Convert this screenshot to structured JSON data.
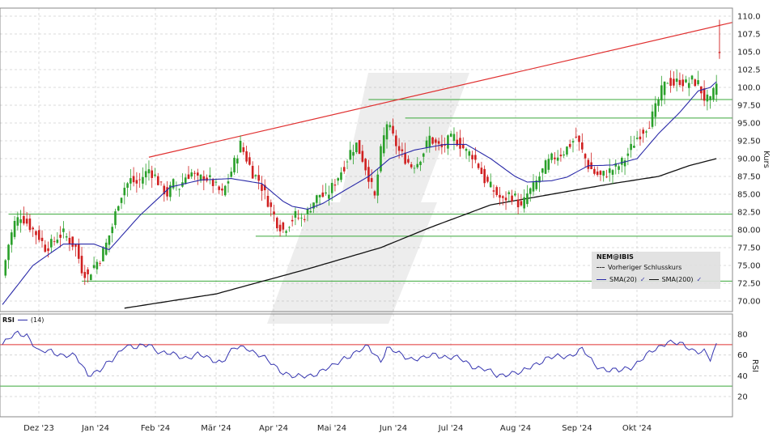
{
  "chart_data": [
    {
      "type": "candlestick",
      "title": "",
      "symbol": "NEM@IBIS",
      "ylabel": "Kurs",
      "ylim": [
        68.5,
        111
      ],
      "yticks": [
        "110.0",
        "107.5",
        "105.0",
        "102.5",
        "100.0",
        "97.50",
        "95.00",
        "92.50",
        "90.00",
        "87.50",
        "85.00",
        "82.50",
        "80.00",
        "77.50",
        "75.00",
        "72.50",
        "70.00"
      ],
      "x_months": [
        "Dez '23",
        "Jan '24",
        "Feb '24",
        "Mär '24",
        "Apr '24",
        "Mai '24",
        "Jun '24",
        "Jul '24",
        "Aug '24",
        "Sep '24",
        "Okt '24"
      ],
      "legend": {
        "title": "NEM@IBIS",
        "prev_close": "Vorheriger Schlusskurs",
        "sma20": "SMA(20)",
        "sma200": "SMA(200)"
      },
      "close_anchors": [
        [
          0,
          73.5
        ],
        [
          2,
          78
        ],
        [
          4,
          81
        ],
        [
          6,
          82
        ],
        [
          8,
          81
        ],
        [
          10,
          80
        ],
        [
          12,
          79
        ],
        [
          14,
          77.5
        ],
        [
          16,
          78
        ],
        [
          18,
          79
        ],
        [
          20,
          79.5
        ],
        [
          22,
          78.5
        ],
        [
          24,
          77.5
        ],
        [
          26,
          74.5
        ],
        [
          28,
          73.5
        ],
        [
          30,
          75
        ],
        [
          32,
          76
        ],
        [
          34,
          78
        ],
        [
          36,
          80.5
        ],
        [
          38,
          84
        ],
        [
          40,
          86
        ],
        [
          42,
          87
        ],
        [
          44,
          86.5
        ],
        [
          46,
          87.5
        ],
        [
          48,
          88.5
        ],
        [
          50,
          87.5
        ],
        [
          52,
          86
        ],
        [
          54,
          85
        ],
        [
          56,
          86.5
        ],
        [
          58,
          86
        ],
        [
          60,
          87.5
        ],
        [
          62,
          88
        ],
        [
          64,
          87
        ],
        [
          66,
          87.5
        ],
        [
          68,
          87
        ],
        [
          70,
          86
        ],
        [
          72,
          85
        ],
        [
          74,
          87
        ],
        [
          76,
          89.5
        ],
        [
          78,
          92
        ],
        [
          80,
          90
        ],
        [
          82,
          88
        ],
        [
          84,
          87
        ],
        [
          86,
          85
        ],
        [
          88,
          83
        ],
        [
          90,
          81
        ],
        [
          92,
          80
        ],
        [
          94,
          81
        ],
        [
          96,
          82
        ],
        [
          98,
          81.5
        ],
        [
          100,
          82.5
        ],
        [
          102,
          84
        ],
        [
          104,
          85
        ],
        [
          106,
          84.5
        ],
        [
          108,
          86
        ],
        [
          110,
          87.5
        ],
        [
          112,
          89
        ],
        [
          114,
          91
        ],
        [
          116,
          92
        ],
        [
          118,
          90
        ],
        [
          120,
          87.5
        ],
        [
          122,
          84.5
        ],
        [
          124,
          91
        ],
        [
          126,
          95
        ],
        [
          128,
          93
        ],
        [
          130,
          91
        ],
        [
          132,
          90
        ],
        [
          134,
          89
        ],
        [
          136,
          89.5
        ],
        [
          138,
          91
        ],
        [
          140,
          93
        ],
        [
          142,
          92
        ],
        [
          144,
          91.5
        ],
        [
          146,
          92.5
        ],
        [
          148,
          93
        ],
        [
          150,
          92
        ],
        [
          152,
          91
        ],
        [
          154,
          90.5
        ],
        [
          156,
          89
        ],
        [
          158,
          87
        ],
        [
          160,
          86
        ],
        [
          162,
          85
        ],
        [
          164,
          84
        ],
        [
          166,
          85
        ],
        [
          168,
          84.5
        ],
        [
          170,
          83
        ],
        [
          172,
          85
        ],
        [
          174,
          86
        ],
        [
          176,
          87.5
        ],
        [
          178,
          89
        ],
        [
          180,
          90
        ],
        [
          182,
          90.5
        ],
        [
          184,
          91
        ],
        [
          186,
          92
        ],
        [
          188,
          93
        ],
        [
          190,
          91
        ],
        [
          192,
          89
        ],
        [
          194,
          88
        ],
        [
          196,
          87.5
        ],
        [
          198,
          88
        ],
        [
          200,
          88.5
        ],
        [
          202,
          89
        ],
        [
          204,
          90
        ],
        [
          206,
          91.5
        ],
        [
          208,
          93
        ],
        [
          210,
          94
        ],
        [
          212,
          95
        ],
        [
          214,
          97
        ],
        [
          216,
          99.5
        ],
        [
          218,
          101
        ],
        [
          220,
          100.5
        ],
        [
          222,
          101
        ],
        [
          224,
          100.5
        ],
        [
          226,
          101
        ],
        [
          228,
          100.5
        ],
        [
          230,
          98.5
        ],
        [
          232,
          98
        ],
        [
          234,
          100.5
        ]
      ],
      "last_candle": {
        "open": 100.8,
        "high": 109.5,
        "low": 104.0,
        "close": 104.9
      },
      "sma20_anchors": [
        [
          0,
          69.5
        ],
        [
          10,
          75
        ],
        [
          20,
          78
        ],
        [
          30,
          78
        ],
        [
          35,
          77.2
        ],
        [
          45,
          82
        ],
        [
          55,
          86
        ],
        [
          65,
          87
        ],
        [
          75,
          87.2
        ],
        [
          85,
          86.5
        ],
        [
          92,
          84
        ],
        [
          95,
          83.3
        ],
        [
          100,
          82.9
        ],
        [
          105,
          83.7
        ],
        [
          112,
          85.5
        ],
        [
          120,
          87.5
        ],
        [
          127,
          90
        ],
        [
          135,
          91.2
        ],
        [
          145,
          92
        ],
        [
          152,
          92
        ],
        [
          160,
          90
        ],
        [
          168,
          87.5
        ],
        [
          172,
          86.7
        ],
        [
          180,
          86.9
        ],
        [
          185,
          87.4
        ],
        [
          192,
          89
        ],
        [
          200,
          89.1
        ],
        [
          208,
          90
        ],
        [
          215,
          93.5
        ],
        [
          222,
          96.5
        ],
        [
          228,
          99.5
        ],
        [
          232,
          100
        ],
        [
          234,
          100.8
        ]
      ],
      "sma200_anchors": [
        [
          40,
          69
        ],
        [
          70,
          71
        ],
        [
          100,
          74.5
        ],
        [
          124,
          77.5
        ],
        [
          140,
          80.3
        ],
        [
          160,
          83.5
        ],
        [
          180,
          85
        ],
        [
          200,
          86.5
        ],
        [
          215,
          87.5
        ],
        [
          225,
          89
        ],
        [
          234,
          90
        ]
      ],
      "trendline": {
        "x1": 48,
        "y1": 90.2,
        "x2": 240,
        "y2": 109.2
      },
      "support_lines": [
        {
          "x1": 2,
          "x2": 240,
          "y": 82.2
        },
        {
          "x1": 83,
          "x2": 240,
          "y": 79.1
        },
        {
          "x1": 26,
          "x2": 240,
          "y": 72.8
        },
        {
          "x1": 120,
          "x2": 240,
          "y": 98.3
        },
        {
          "x1": 132,
          "x2": 240,
          "y": 95.7
        }
      ]
    },
    {
      "type": "line",
      "title": "",
      "ylabel": "RSI",
      "legend": {
        "name": "RSI",
        "period": "(14)"
      },
      "ylim": [
        10,
        90
      ],
      "yticks": [
        "80",
        "60",
        "40",
        "20"
      ],
      "bands": [
        70,
        30
      ],
      "rsi_anchors": [
        [
          0,
          70
        ],
        [
          3,
          77
        ],
        [
          5,
          81
        ],
        [
          8,
          80
        ],
        [
          12,
          62
        ],
        [
          16,
          64
        ],
        [
          20,
          60
        ],
        [
          24,
          58
        ],
        [
          28,
          42
        ],
        [
          32,
          45
        ],
        [
          36,
          55
        ],
        [
          40,
          70
        ],
        [
          44,
          66
        ],
        [
          48,
          71
        ],
        [
          52,
          62
        ],
        [
          56,
          60
        ],
        [
          60,
          58
        ],
        [
          64,
          60
        ],
        [
          68,
          56
        ],
        [
          72,
          54
        ],
        [
          76,
          66
        ],
        [
          80,
          68
        ],
        [
          84,
          60
        ],
        [
          88,
          52
        ],
        [
          92,
          44
        ],
        [
          96,
          38
        ],
        [
          100,
          40
        ],
        [
          104,
          44
        ],
        [
          108,
          48
        ],
        [
          112,
          58
        ],
        [
          116,
          62
        ],
        [
          120,
          68
        ],
        [
          124,
          55
        ],
        [
          126,
          66
        ],
        [
          130,
          61
        ],
        [
          134,
          57
        ],
        [
          138,
          56
        ],
        [
          142,
          61
        ],
        [
          146,
          58
        ],
        [
          150,
          56
        ],
        [
          154,
          50
        ],
        [
          158,
          46
        ],
        [
          162,
          40
        ],
        [
          166,
          43
        ],
        [
          170,
          42
        ],
        [
          174,
          51
        ],
        [
          178,
          56
        ],
        [
          182,
          58
        ],
        [
          186,
          60
        ],
        [
          190,
          65
        ],
        [
          194,
          51
        ],
        [
          198,
          46
        ],
        [
          202,
          44
        ],
        [
          206,
          49
        ],
        [
          210,
          57
        ],
        [
          214,
          65
        ],
        [
          218,
          74
        ],
        [
          222,
          70
        ],
        [
          226,
          65
        ],
        [
          230,
          64
        ],
        [
          232,
          55
        ],
        [
          234,
          68
        ]
      ]
    }
  ]
}
